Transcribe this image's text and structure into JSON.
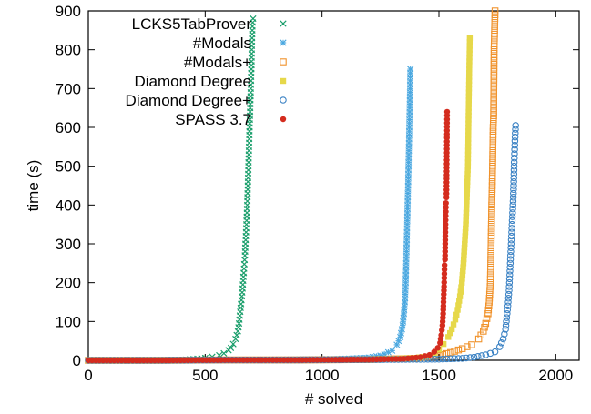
{
  "chart_data": {
    "type": "scatter",
    "xlabel": "# solved",
    "ylabel": "time (s)",
    "xlim": [
      0,
      2100
    ],
    "ylim": [
      0,
      900
    ],
    "xticks": [
      0,
      500,
      1000,
      1500,
      2000
    ],
    "yticks": [
      0,
      100,
      200,
      300,
      400,
      500,
      600,
      700,
      800,
      900
    ],
    "grid": false,
    "legend_position": "top-left",
    "series": [
      {
        "name": "LCKS5TabProver",
        "marker": "x",
        "color": "#1a9e6b",
        "points": [
          [
            0,
            0
          ],
          [
            100,
            0
          ],
          [
            200,
            0
          ],
          [
            300,
            0
          ],
          [
            400,
            1
          ],
          [
            450,
            3
          ],
          [
            500,
            6
          ],
          [
            530,
            9
          ],
          [
            560,
            13
          ],
          [
            580,
            18
          ],
          [
            600,
            26
          ],
          [
            610,
            32
          ],
          [
            620,
            42
          ],
          [
            630,
            55
          ],
          [
            640,
            75
          ],
          [
            645,
            95
          ],
          [
            650,
            125
          ],
          [
            655,
            155
          ],
          [
            660,
            185
          ],
          [
            665,
            225
          ],
          [
            670,
            270
          ],
          [
            675,
            330
          ],
          [
            680,
            400
          ],
          [
            683,
            460
          ],
          [
            686,
            520
          ],
          [
            689,
            580
          ],
          [
            692,
            640
          ],
          [
            695,
            700
          ],
          [
            698,
            760
          ],
          [
            700,
            820
          ],
          [
            702,
            860
          ],
          [
            705,
            880
          ]
        ]
      },
      {
        "name": "#Modals",
        "marker": "*",
        "color": "#4ba8e0",
        "points": [
          [
            0,
            0
          ],
          [
            200,
            0
          ],
          [
            400,
            1
          ],
          [
            600,
            1
          ],
          [
            800,
            2
          ],
          [
            1000,
            3
          ],
          [
            1100,
            4
          ],
          [
            1200,
            7
          ],
          [
            1250,
            12
          ],
          [
            1300,
            25
          ],
          [
            1320,
            40
          ],
          [
            1335,
            60
          ],
          [
            1345,
            90
          ],
          [
            1350,
            120
          ],
          [
            1355,
            160
          ],
          [
            1358,
            200
          ],
          [
            1360,
            250
          ],
          [
            1362,
            300
          ],
          [
            1364,
            350
          ],
          [
            1366,
            400
          ],
          [
            1368,
            450
          ],
          [
            1370,
            500
          ],
          [
            1372,
            560
          ],
          [
            1374,
            620
          ],
          [
            1376,
            680
          ],
          [
            1378,
            750
          ]
        ]
      },
      {
        "name": "#Modals+",
        "marker": "square-open",
        "color": "#f0922b",
        "points": [
          [
            0,
            0
          ],
          [
            300,
            0
          ],
          [
            600,
            1
          ],
          [
            900,
            1
          ],
          [
            1200,
            2
          ],
          [
            1400,
            5
          ],
          [
            1500,
            12
          ],
          [
            1550,
            20
          ],
          [
            1600,
            30
          ],
          [
            1640,
            40
          ],
          [
            1670,
            55
          ],
          [
            1690,
            75
          ],
          [
            1700,
            95
          ],
          [
            1710,
            120
          ],
          [
            1715,
            150
          ],
          [
            1720,
            200
          ],
          [
            1722,
            260
          ],
          [
            1724,
            330
          ],
          [
            1726,
            400
          ],
          [
            1728,
            450
          ],
          [
            1730,
            520
          ],
          [
            1732,
            600
          ],
          [
            1734,
            630
          ],
          [
            1736,
            800
          ],
          [
            1738,
            850
          ],
          [
            1740,
            900
          ]
        ]
      },
      {
        "name": "Diamond Degree",
        "marker": "square-filled",
        "color": "#e6d84a",
        "points": [
          [
            0,
            0
          ],
          [
            300,
            0
          ],
          [
            600,
            1
          ],
          [
            900,
            1
          ],
          [
            1200,
            2
          ],
          [
            1400,
            6
          ],
          [
            1450,
            10
          ],
          [
            1480,
            18
          ],
          [
            1500,
            28
          ],
          [
            1520,
            42
          ],
          [
            1540,
            60
          ],
          [
            1555,
            80
          ],
          [
            1570,
            105
          ],
          [
            1580,
            130
          ],
          [
            1590,
            165
          ],
          [
            1598,
            200
          ],
          [
            1605,
            250
          ],
          [
            1610,
            300
          ],
          [
            1615,
            350
          ],
          [
            1618,
            400
          ],
          [
            1621,
            450
          ],
          [
            1624,
            500
          ],
          [
            1627,
            640
          ],
          [
            1630,
            760
          ],
          [
            1632,
            830
          ]
        ]
      },
      {
        "name": "Diamond Degree+",
        "marker": "circle-open",
        "color": "#3b82c4",
        "points": [
          [
            0,
            0
          ],
          [
            300,
            0
          ],
          [
            600,
            1
          ],
          [
            900,
            1
          ],
          [
            1200,
            2
          ],
          [
            1500,
            3
          ],
          [
            1600,
            5
          ],
          [
            1650,
            8
          ],
          [
            1700,
            14
          ],
          [
            1740,
            22
          ],
          [
            1760,
            35
          ],
          [
            1775,
            55
          ],
          [
            1785,
            80
          ],
          [
            1790,
            110
          ],
          [
            1795,
            140
          ],
          [
            1800,
            180
          ],
          [
            1803,
            220
          ],
          [
            1806,
            260
          ],
          [
            1809,
            300
          ],
          [
            1812,
            340
          ],
          [
            1815,
            380
          ],
          [
            1818,
            420
          ],
          [
            1820,
            460
          ],
          [
            1822,
            510
          ],
          [
            1825,
            565
          ],
          [
            1828,
            605
          ]
        ]
      },
      {
        "name": "SPASS 3.7",
        "marker": "circle-filled",
        "color": "#d42c1e",
        "points": [
          [
            0,
            0
          ],
          [
            300,
            0
          ],
          [
            600,
            1
          ],
          [
            900,
            1
          ],
          [
            1200,
            2
          ],
          [
            1350,
            4
          ],
          [
            1420,
            8
          ],
          [
            1460,
            14
          ],
          [
            1480,
            22
          ],
          [
            1495,
            32
          ],
          [
            1505,
            45
          ],
          [
            1510,
            65
          ],
          [
            1515,
            90
          ],
          [
            1518,
            120
          ],
          [
            1520,
            160
          ],
          [
            1522,
            190
          ],
          [
            1524,
            245
          ],
          [
            1526,
            260
          ],
          [
            1528,
            350
          ],
          [
            1530,
            405
          ],
          [
            1532,
            420
          ],
          [
            1535,
            640
          ]
        ]
      }
    ]
  }
}
